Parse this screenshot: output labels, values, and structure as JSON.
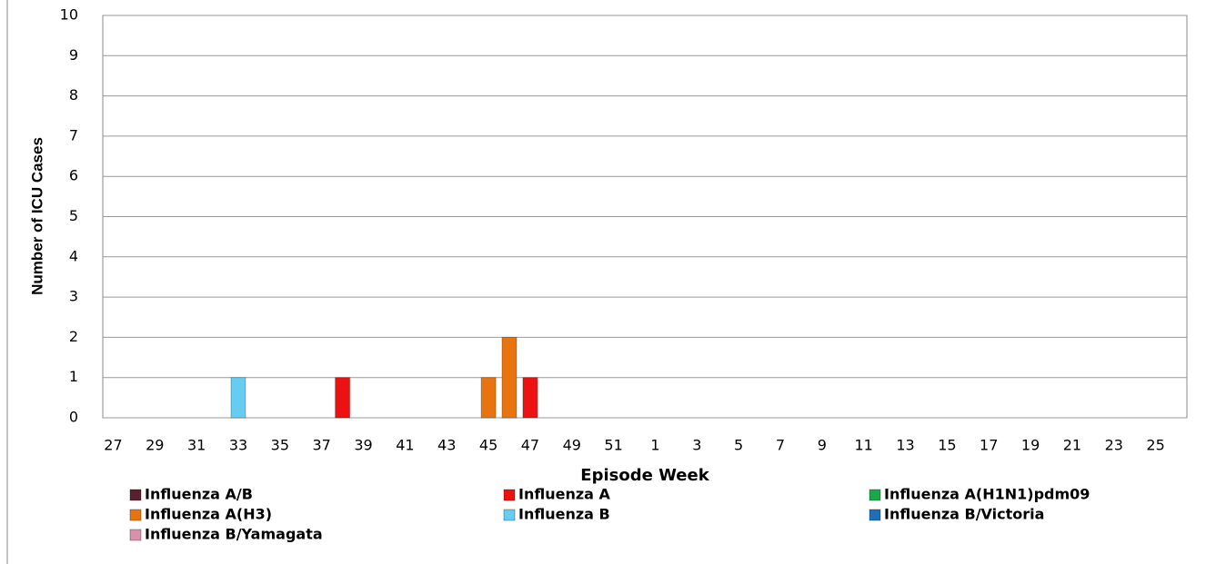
{
  "chart_data": {
    "type": "stacked_bar",
    "x_label": "Episode Week",
    "y_label": "Number of ICU Cases",
    "categories": [
      "27",
      null,
      "29",
      null,
      "31",
      null,
      "33",
      null,
      "35",
      null,
      "37",
      null,
      "39",
      null,
      "41",
      null,
      "43",
      null,
      "45",
      null,
      "47",
      null,
      "49",
      null,
      "51",
      null,
      "1",
      null,
      "3",
      null,
      "5",
      null,
      "7",
      null,
      "9",
      null,
      "11",
      null,
      "13",
      null,
      "15",
      null,
      "17",
      null,
      "19",
      null,
      "21",
      null,
      "23",
      null,
      "25",
      null
    ],
    "series": [
      {
        "name": "Influenza A/B",
        "color": "#5a2030",
        "values": [
          0,
          0,
          0,
          0,
          0,
          0,
          0,
          0,
          0,
          0,
          0,
          0,
          0,
          0,
          0,
          0,
          0,
          0,
          0,
          0,
          0,
          0,
          0,
          0,
          0,
          0,
          0,
          0,
          0,
          0,
          0,
          0,
          0,
          0,
          0,
          0,
          0,
          0,
          0,
          0,
          0,
          0,
          0,
          0,
          0,
          0,
          0,
          0,
          0,
          0,
          0,
          0
        ]
      },
      {
        "name": "Influenza A",
        "color": "#ee1111",
        "values": [
          0,
          0,
          0,
          0,
          0,
          0,
          0,
          0,
          0,
          0,
          0,
          1,
          0,
          0,
          0,
          0,
          0,
          0,
          0,
          0,
          1,
          0,
          0,
          0,
          0,
          0,
          0,
          0,
          0,
          0,
          0,
          0,
          0,
          0,
          0,
          0,
          0,
          0,
          0,
          0,
          0,
          0,
          0,
          0,
          0,
          0,
          0,
          0,
          0,
          0,
          0,
          0
        ]
      },
      {
        "name": "Influenza A(H1N1)pdm09",
        "color": "#1aa84a",
        "values": [
          0,
          0,
          0,
          0,
          0,
          0,
          0,
          0,
          0,
          0,
          0,
          0,
          0,
          0,
          0,
          0,
          0,
          0,
          0,
          0,
          0,
          0,
          0,
          0,
          0,
          0,
          0,
          0,
          0,
          0,
          0,
          0,
          0,
          0,
          0,
          0,
          0,
          0,
          0,
          0,
          0,
          0,
          0,
          0,
          0,
          0,
          0,
          0,
          0,
          0,
          0,
          0
        ]
      },
      {
        "name": "Influenza A(H3)",
        "color": "#e8740f",
        "values": [
          0,
          0,
          0,
          0,
          0,
          0,
          0,
          0,
          0,
          0,
          0,
          0,
          0,
          0,
          0,
          0,
          0,
          0,
          1,
          2,
          0,
          0,
          0,
          0,
          0,
          0,
          0,
          0,
          0,
          0,
          0,
          0,
          0,
          0,
          0,
          0,
          0,
          0,
          0,
          0,
          0,
          0,
          0,
          0,
          0,
          0,
          0,
          0,
          0,
          0,
          0,
          0
        ]
      },
      {
        "name": "Influenza B",
        "color": "#66ccf0",
        "values": [
          0,
          0,
          0,
          0,
          0,
          0,
          1,
          0,
          0,
          0,
          0,
          0,
          0,
          0,
          0,
          0,
          0,
          0,
          0,
          0,
          0,
          0,
          0,
          0,
          0,
          0,
          0,
          0,
          0,
          0,
          0,
          0,
          0,
          0,
          0,
          0,
          0,
          0,
          0,
          0,
          0,
          0,
          0,
          0,
          0,
          0,
          0,
          0,
          0,
          0,
          0,
          0
        ]
      },
      {
        "name": "Influenza B/Victoria",
        "color": "#1f6fb8",
        "values": [
          0,
          0,
          0,
          0,
          0,
          0,
          0,
          0,
          0,
          0,
          0,
          0,
          0,
          0,
          0,
          0,
          0,
          0,
          0,
          0,
          0,
          0,
          0,
          0,
          0,
          0,
          0,
          0,
          0,
          0,
          0,
          0,
          0,
          0,
          0,
          0,
          0,
          0,
          0,
          0,
          0,
          0,
          0,
          0,
          0,
          0,
          0,
          0,
          0,
          0,
          0,
          0
        ]
      },
      {
        "name": "Influenza B/Yamagata",
        "color": "#d990a8",
        "values": [
          0,
          0,
          0,
          0,
          0,
          0,
          0,
          0,
          0,
          0,
          0,
          0,
          0,
          0,
          0,
          0,
          0,
          0,
          0,
          0,
          0,
          0,
          0,
          0,
          0,
          0,
          0,
          0,
          0,
          0,
          0,
          0,
          0,
          0,
          0,
          0,
          0,
          0,
          0,
          0,
          0,
          0,
          0,
          0,
          0,
          0,
          0,
          0,
          0,
          0,
          0,
          0
        ]
      }
    ],
    "ylim": [
      0,
      10
    ],
    "yticks": [
      0,
      1,
      2,
      3,
      4,
      5,
      6,
      7,
      8,
      9,
      10
    ],
    "grid": true
  }
}
